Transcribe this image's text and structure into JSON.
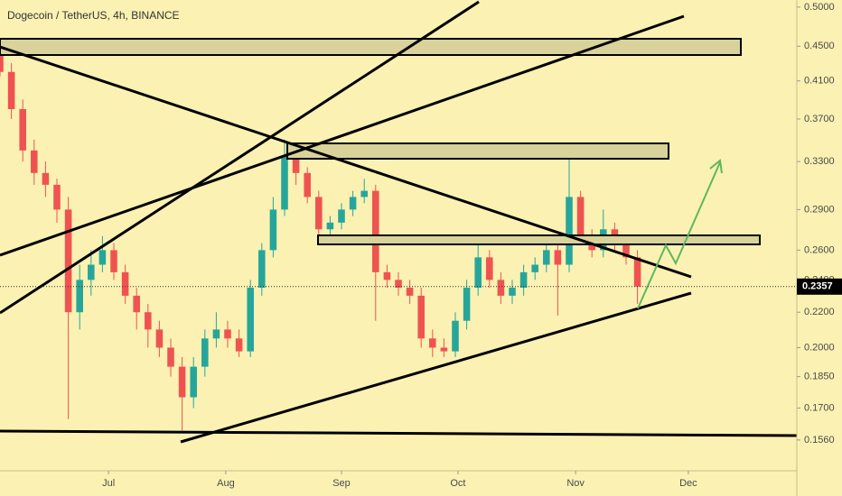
{
  "chart_data": {
    "type": "candlestick",
    "title": "Dogecoin / TetherUS, 4h, BINANCE",
    "log_scale": true,
    "xlim": [
      0,
      210
    ],
    "xticks": [
      {
        "value": 28.6,
        "label": "Jul"
      },
      {
        "value": 59.5,
        "label": "Aug"
      },
      {
        "value": 90,
        "label": "Sep"
      },
      {
        "value": 120.7,
        "label": "Oct"
      },
      {
        "value": 151.7,
        "label": "Nov"
      },
      {
        "value": 181.4,
        "label": "Dec"
      }
    ],
    "ylim": [
      0.1436,
      0.5097
    ],
    "yticks": [
      {
        "value": 0.5,
        "label": "0.5000"
      },
      {
        "value": 0.45,
        "label": "0.4500"
      },
      {
        "value": 0.41,
        "label": "0.4100"
      },
      {
        "value": 0.37,
        "label": "0.3700"
      },
      {
        "value": 0.33,
        "label": "0.3300"
      },
      {
        "value": 0.29,
        "label": "0.2900"
      },
      {
        "value": 0.26,
        "label": "0.2600"
      },
      {
        "value": 0.24,
        "label": "0.2400"
      },
      {
        "value": 0.22,
        "label": "0.2200"
      },
      {
        "value": 0.2,
        "label": "0.2000"
      },
      {
        "value": 0.185,
        "label": "0.1850"
      },
      {
        "value": 0.17,
        "label": "0.1700"
      },
      {
        "value": 0.156,
        "label": "0.1560"
      }
    ],
    "up_color": "#26a69a",
    "down_color": "#ef5350",
    "last_price": 0.2357,
    "x": [
      0,
      3,
      6,
      9,
      12,
      15,
      18,
      21,
      24,
      27,
      30,
      33,
      36,
      39,
      42,
      45,
      48,
      51,
      54,
      57,
      60,
      63,
      66,
      69,
      72,
      75,
      78,
      81,
      84,
      87,
      90,
      93,
      96,
      99,
      102,
      105,
      108,
      111,
      114,
      117,
      120,
      123,
      126,
      129,
      132,
      135,
      138,
      141,
      144,
      147,
      150,
      153,
      156,
      159,
      162,
      165,
      168
    ],
    "candles": [
      [
        0.45,
        0.455,
        0.415,
        0.42
      ],
      [
        0.42,
        0.43,
        0.37,
        0.38
      ],
      [
        0.38,
        0.39,
        0.33,
        0.34
      ],
      [
        0.34,
        0.35,
        0.31,
        0.32
      ],
      [
        0.32,
        0.33,
        0.3,
        0.31
      ],
      [
        0.31,
        0.315,
        0.28,
        0.29
      ],
      [
        0.29,
        0.3,
        0.165,
        0.22
      ],
      [
        0.22,
        0.25,
        0.21,
        0.24
      ],
      [
        0.24,
        0.26,
        0.23,
        0.25
      ],
      [
        0.25,
        0.27,
        0.245,
        0.26
      ],
      [
        0.26,
        0.265,
        0.24,
        0.245
      ],
      [
        0.245,
        0.25,
        0.225,
        0.23
      ],
      [
        0.23,
        0.235,
        0.21,
        0.22
      ],
      [
        0.22,
        0.225,
        0.2,
        0.21
      ],
      [
        0.21,
        0.215,
        0.195,
        0.2
      ],
      [
        0.2,
        0.205,
        0.185,
        0.19
      ],
      [
        0.19,
        0.195,
        0.16,
        0.175
      ],
      [
        0.175,
        0.195,
        0.17,
        0.19
      ],
      [
        0.19,
        0.21,
        0.185,
        0.205
      ],
      [
        0.205,
        0.22,
        0.2,
        0.21
      ],
      [
        0.21,
        0.215,
        0.2,
        0.205
      ],
      [
        0.205,
        0.21,
        0.195,
        0.198
      ],
      [
        0.198,
        0.24,
        0.195,
        0.235
      ],
      [
        0.235,
        0.265,
        0.23,
        0.26
      ],
      [
        0.26,
        0.3,
        0.255,
        0.29
      ],
      [
        0.29,
        0.35,
        0.285,
        0.335
      ],
      [
        0.335,
        0.34,
        0.31,
        0.32
      ],
      [
        0.32,
        0.325,
        0.295,
        0.3
      ],
      [
        0.3,
        0.305,
        0.27,
        0.275
      ],
      [
        0.275,
        0.285,
        0.27,
        0.28
      ],
      [
        0.28,
        0.295,
        0.275,
        0.29
      ],
      [
        0.29,
        0.305,
        0.285,
        0.3
      ],
      [
        0.3,
        0.315,
        0.295,
        0.305
      ],
      [
        0.305,
        0.31,
        0.215,
        0.245
      ],
      [
        0.245,
        0.25,
        0.235,
        0.24
      ],
      [
        0.24,
        0.245,
        0.23,
        0.235
      ],
      [
        0.235,
        0.24,
        0.225,
        0.23
      ],
      [
        0.23,
        0.235,
        0.2,
        0.205
      ],
      [
        0.205,
        0.21,
        0.195,
        0.2
      ],
      [
        0.2,
        0.205,
        0.195,
        0.198
      ],
      [
        0.198,
        0.22,
        0.195,
        0.215
      ],
      [
        0.215,
        0.24,
        0.21,
        0.235
      ],
      [
        0.235,
        0.265,
        0.23,
        0.255
      ],
      [
        0.255,
        0.26,
        0.235,
        0.24
      ],
      [
        0.24,
        0.245,
        0.225,
        0.23
      ],
      [
        0.23,
        0.24,
        0.225,
        0.235
      ],
      [
        0.235,
        0.25,
        0.23,
        0.245
      ],
      [
        0.245,
        0.255,
        0.24,
        0.25
      ],
      [
        0.25,
        0.27,
        0.245,
        0.26
      ],
      [
        0.26,
        0.265,
        0.218,
        0.25
      ],
      [
        0.25,
        0.34,
        0.245,
        0.3
      ],
      [
        0.3,
        0.305,
        0.265,
        0.27
      ],
      [
        0.27,
        0.275,
        0.255,
        0.26
      ],
      [
        0.26,
        0.29,
        0.255,
        0.275
      ],
      [
        0.275,
        0.28,
        0.26,
        0.265
      ],
      [
        0.265,
        0.27,
        0.25,
        0.255
      ],
      [
        0.255,
        0.26,
        0.225,
        0.2357
      ]
    ]
  }
}
